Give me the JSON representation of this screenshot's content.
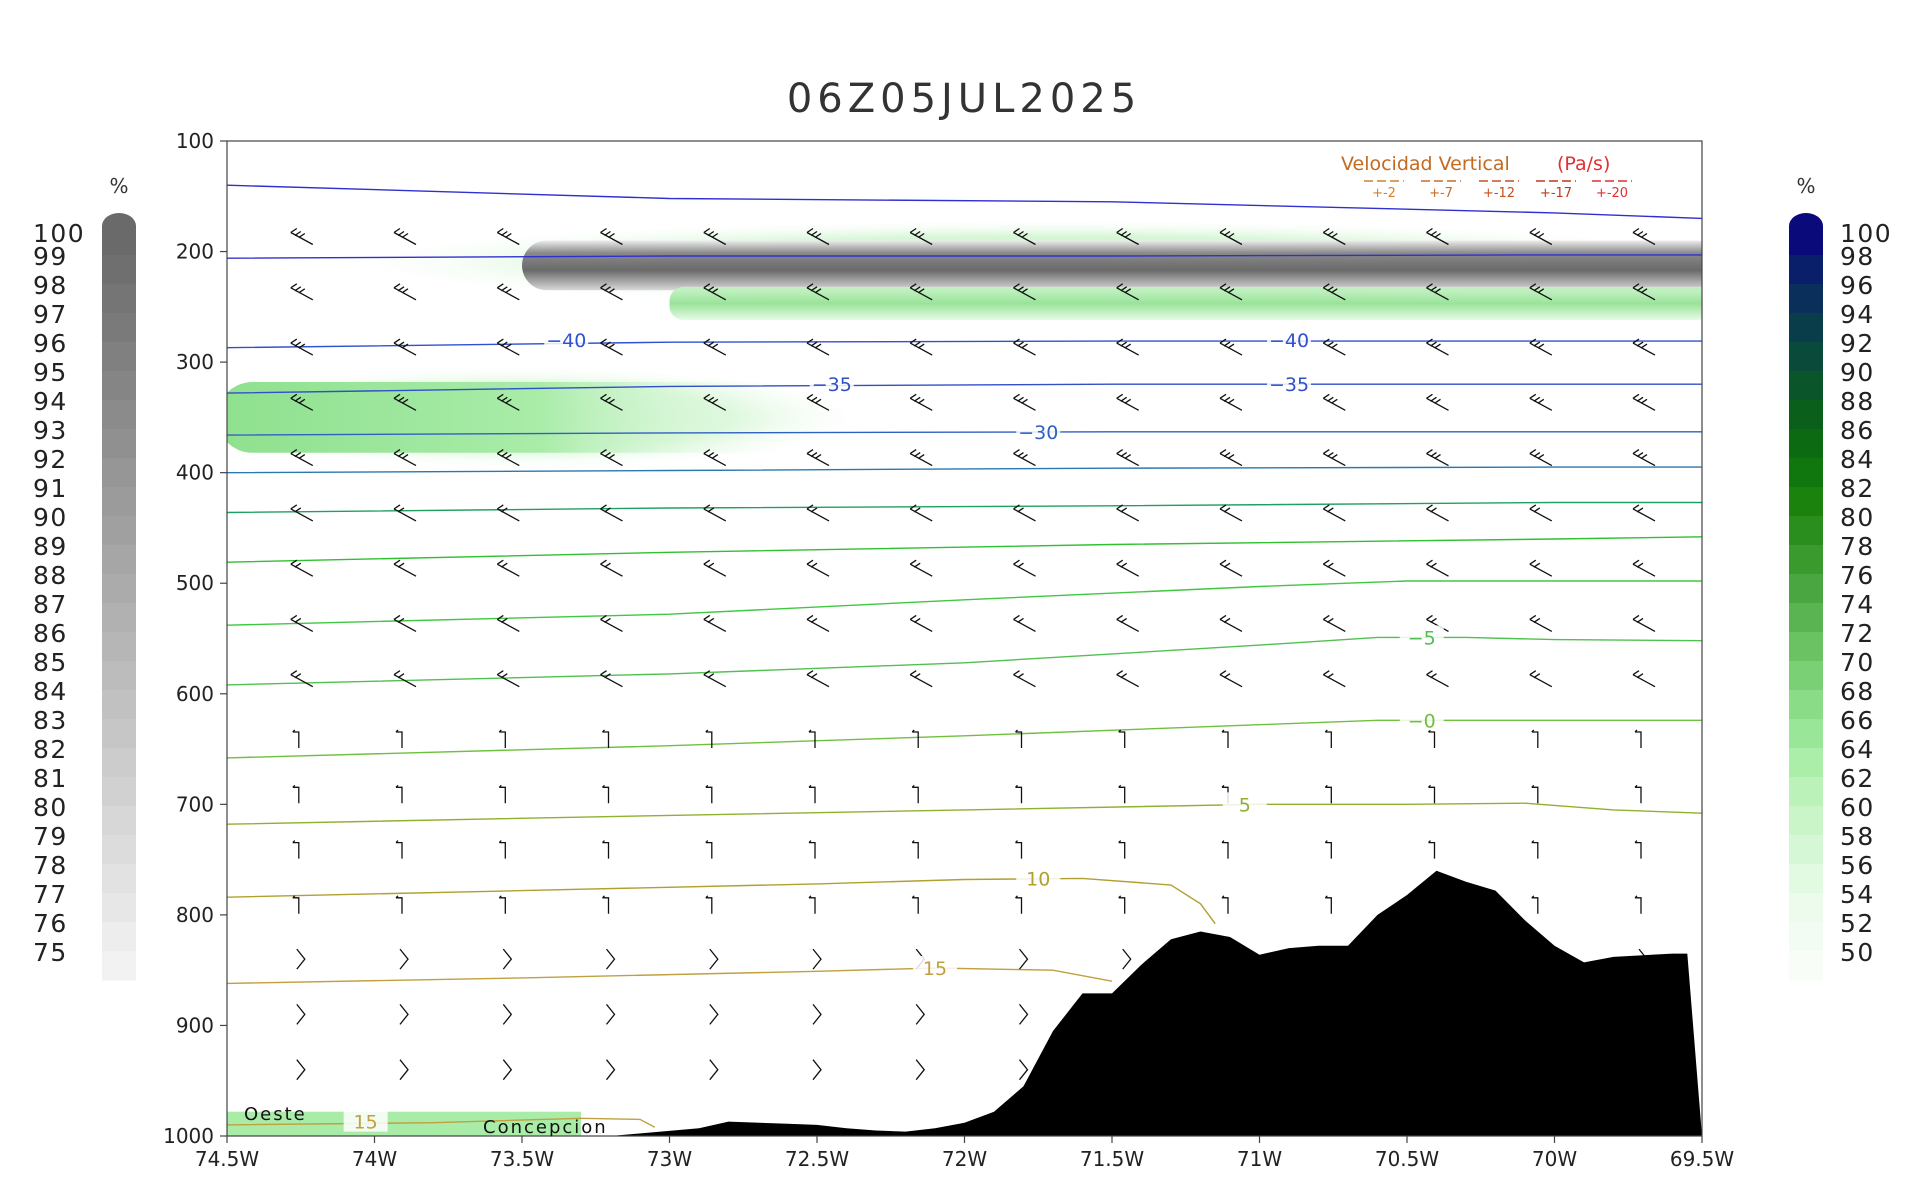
{
  "chart_data": {
    "type": "line",
    "title": "06Z05JUL2025",
    "xaxis": {
      "ticks": [
        "74.5W",
        "74W",
        "73.5W",
        "73W",
        "72.5W",
        "72W",
        "71.5W",
        "71W",
        "70.5W",
        "70W",
        "69.5W"
      ],
      "tick_values": [
        -74.5,
        -74,
        -73.5,
        -73,
        -72.5,
        -72,
        -71.5,
        -71,
        -70.5,
        -70,
        -69.5
      ],
      "range": [
        -74.5,
        -69.5
      ]
    },
    "yaxis": {
      "ticks": [
        "100",
        "200",
        "300",
        "400",
        "500",
        "600",
        "700",
        "800",
        "900",
        "1000"
      ],
      "tick_values": [
        100,
        200,
        300,
        400,
        500,
        600,
        700,
        800,
        900,
        1000
      ],
      "range": [
        100,
        1000
      ],
      "inverted": true
    },
    "left_colorbar": {
      "unit": "%",
      "labels": [
        "100",
        "99",
        "98",
        "97",
        "96",
        "95",
        "94",
        "93",
        "92",
        "91",
        "90",
        "89",
        "88",
        "87",
        "86",
        "85",
        "84",
        "83",
        "82",
        "81",
        "80",
        "79",
        "78",
        "77",
        "76",
        "75"
      ],
      "color_top": "#6a6a6a",
      "color_bottom": "#f2f2f2"
    },
    "right_colorbar": {
      "unit": "%",
      "labels": [
        "100",
        "98",
        "96",
        "94",
        "92",
        "90",
        "88",
        "86",
        "84",
        "82",
        "80",
        "78",
        "76",
        "74",
        "72",
        "70",
        "68",
        "66",
        "64",
        "62",
        "60",
        "58",
        "56",
        "54",
        "52",
        "50"
      ],
      "colors": [
        "#0a0a7a",
        "#0a1f6a",
        "#0a2f5a",
        "#0a3d4a",
        "#0a4a3a",
        "#0a552a",
        "#0a5f1a",
        "#0b6a12",
        "#10760e",
        "#1c820e",
        "#2a8e1e",
        "#3a9a2e",
        "#4aa640",
        "#5ab452",
        "#6ac263",
        "#7ad074",
        "#8adc86",
        "#9ae698",
        "#aaeeaa",
        "#baf2ba",
        "#c9f5c9",
        "#d6f7d6",
        "#e2f9e2",
        "#ecfbec",
        "#f3fcf3",
        "#f8fdf8"
      ]
    },
    "legend": {
      "title": "Velocidad Vertical",
      "unit": "(Pa/s)",
      "entries": [
        "+-2",
        "+-7",
        "+-12",
        "+-17",
        "+-20"
      ],
      "colors": [
        "#d08030",
        "#cc6a2a",
        "#c45020",
        "#c03a1a",
        "#e03030"
      ],
      "position": "top-right"
    },
    "annotations": [
      "Oeste",
      "Concepcion"
    ],
    "contours": [
      {
        "value": null,
        "color": "#3030d0",
        "points": [
          [
            -74.5,
            140
          ],
          [
            -73,
            152
          ],
          [
            -71.5,
            155
          ],
          [
            -70,
            165
          ],
          [
            -69.5,
            170
          ]
        ]
      },
      {
        "value": null,
        "color": "#3030d0",
        "points": [
          [
            -74.5,
            206
          ],
          [
            -73,
            204
          ],
          [
            -71.5,
            204
          ],
          [
            -70,
            203
          ],
          [
            -69.5,
            203
          ]
        ]
      },
      {
        "value": -40,
        "label": "−40",
        "color": "#3050d0",
        "points": [
          [
            -74.5,
            287
          ],
          [
            -73,
            282
          ],
          [
            -71.5,
            281
          ],
          [
            -70,
            281
          ],
          [
            -69.5,
            281
          ]
        ],
        "label_at": [
          [
            -73.35,
            280
          ],
          [
            -70.9,
            280
          ]
        ]
      },
      {
        "value": -35,
        "label": "−35",
        "color": "#3050c8",
        "points": [
          [
            -74.5,
            328
          ],
          [
            -73,
            322
          ],
          [
            -71.5,
            320
          ],
          [
            -70,
            320
          ],
          [
            -69.5,
            320
          ]
        ],
        "label_at": [
          [
            -72.45,
            320
          ],
          [
            -70.9,
            320
          ]
        ]
      },
      {
        "value": -30,
        "label": "−30",
        "color": "#3060c0",
        "points": [
          [
            -74.5,
            366
          ],
          [
            -73,
            364
          ],
          [
            -71.5,
            363
          ],
          [
            -70,
            363
          ],
          [
            -69.5,
            363
          ]
        ],
        "label_at": [
          [
            -71.75,
            363
          ]
        ]
      },
      {
        "value": null,
        "color": "#2a78b0",
        "points": [
          [
            -74.5,
            400
          ],
          [
            -73,
            398
          ],
          [
            -71.5,
            396
          ],
          [
            -70,
            395
          ],
          [
            -69.5,
            395
          ]
        ]
      },
      {
        "value": null,
        "color": "#20a060",
        "points": [
          [
            -74.5,
            436
          ],
          [
            -73,
            432
          ],
          [
            -71.5,
            430
          ],
          [
            -70,
            427
          ],
          [
            -69.5,
            427
          ]
        ]
      },
      {
        "value": null,
        "color": "#30c030",
        "points": [
          [
            -74.5,
            481
          ],
          [
            -73,
            472
          ],
          [
            -71.5,
            465
          ],
          [
            -70,
            460
          ],
          [
            -69.5,
            458
          ]
        ]
      },
      {
        "value": null,
        "color": "#40c840",
        "points": [
          [
            -74.5,
            538
          ],
          [
            -73,
            528
          ],
          [
            -72,
            515
          ],
          [
            -71,
            503
          ],
          [
            -70.5,
            498
          ],
          [
            -70,
            498
          ],
          [
            -69.5,
            498
          ]
        ]
      },
      {
        "value": -5,
        "label": "−5",
        "color": "#50c050",
        "points": [
          [
            -74.5,
            592
          ],
          [
            -73,
            582
          ],
          [
            -72,
            572
          ],
          [
            -71,
            556
          ],
          [
            -70.6,
            549
          ],
          [
            -70.3,
            549
          ],
          [
            -70,
            551
          ],
          [
            -69.5,
            552
          ]
        ],
        "label_at": [
          [
            -70.45,
            549
          ]
        ]
      },
      {
        "value": 0,
        "label": "−0",
        "color": "#70c040",
        "points": [
          [
            -74.5,
            658
          ],
          [
            -73,
            647
          ],
          [
            -72,
            638
          ],
          [
            -71,
            628
          ],
          [
            -70.6,
            624
          ],
          [
            -70,
            624
          ],
          [
            -69.5,
            624
          ]
        ],
        "label_at": [
          [
            -70.45,
            624
          ]
        ]
      },
      {
        "value": 5,
        "label": "5",
        "color": "#90b030",
        "points": [
          [
            -74.5,
            718
          ],
          [
            -73,
            710
          ],
          [
            -72,
            705
          ],
          [
            -71,
            700
          ],
          [
            -70.5,
            700
          ],
          [
            -70.1,
            699
          ],
          [
            -69.8,
            705
          ],
          [
            -69.5,
            708
          ]
        ],
        "label_at": [
          [
            -71.05,
            700
          ]
        ]
      },
      {
        "value": 10,
        "label": "10",
        "color": "#b0a030",
        "points": [
          [
            -74.5,
            784
          ],
          [
            -73.5,
            778
          ],
          [
            -72.5,
            772
          ],
          [
            -72,
            768
          ],
          [
            -71.6,
            767
          ],
          [
            -71.3,
            773
          ],
          [
            -71.2,
            790
          ],
          [
            -71.15,
            808
          ]
        ],
        "label_at": [
          [
            -71.75,
            767
          ]
        ]
      },
      {
        "value": 15,
        "label": "15",
        "color": "#c0a040",
        "points": [
          [
            -74.5,
            862
          ],
          [
            -73.5,
            857
          ],
          [
            -72.5,
            851
          ],
          [
            -72.1,
            848
          ],
          [
            -71.7,
            850
          ],
          [
            -71.5,
            860
          ]
        ],
        "label_at": [
          [
            -72.1,
            848
          ]
        ]
      },
      {
        "value": 15,
        "label": "15",
        "color": "#c0a040",
        "points": [
          [
            -74.5,
            990
          ],
          [
            -73.8,
            988
          ],
          [
            -73.3,
            984
          ],
          [
            -73.1,
            985
          ],
          [
            -73.05,
            992
          ]
        ],
        "label_at": [
          [
            -74.03,
            987
          ]
        ]
      }
    ],
    "terrain_surface_pressure": {
      "lon": [
        -74.5,
        -73.2,
        -72.9,
        -72.8,
        -72.6,
        -72.5,
        -72.4,
        -72.3,
        -72.2,
        -72.1,
        -72,
        -71.9,
        -71.8,
        -71.7,
        -71.6,
        -71.5,
        -71.4,
        -71.3,
        -71.2,
        -71.1,
        -71,
        -70.9,
        -70.8,
        -70.7,
        -70.6,
        -70.5,
        -70.4,
        -70.3,
        -70.2,
        -70.1,
        -70,
        -69.9,
        -69.8,
        -69.6,
        -69.55,
        -69.5
      ],
      "p": [
        1000,
        1000,
        993,
        987,
        989,
        990,
        993,
        995,
        996,
        993,
        988,
        978,
        955,
        905,
        871,
        871,
        845,
        822,
        815,
        820,
        836,
        830,
        828,
        828,
        800,
        782,
        760,
        770,
        778,
        805,
        828,
        843,
        838,
        835,
        835,
        1000
      ]
    },
    "cloud_shading": [
      {
        "color": "#808080",
        "desc": "grey 200 hPa band",
        "lon_from": -73.5,
        "lon_to": -69.5,
        "p_top": 190,
        "p_bot": 235
      },
      {
        "color": "#8adc86",
        "desc": "green 250 hPa band",
        "lon_from": -73.0,
        "lon_to": -69.5,
        "p_top": 232,
        "p_bot": 262
      },
      {
        "color": "#8adc86",
        "desc": "green 340 hPa band",
        "lon_from": -74.5,
        "lon_to": -72.5,
        "p_top": 318,
        "p_bot": 382
      },
      {
        "color": "#a8eca8",
        "desc": "green near-surface",
        "lon_from": -74.5,
        "lon_to": -73.3,
        "p_top": 978,
        "p_bot": 1000
      }
    ]
  }
}
